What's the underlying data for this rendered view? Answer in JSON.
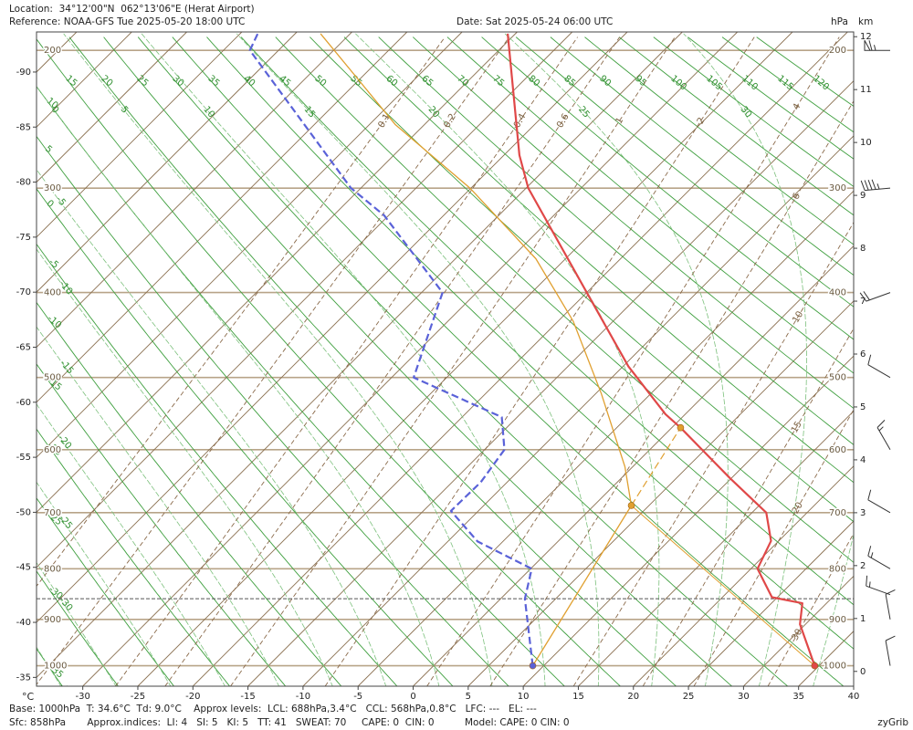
{
  "header": {
    "location": "Location:  34°12'00\"N  062°13'06\"E (Herat Airport)",
    "reference": "Reference: NOAA-GFS Tue 2025-05-20 18:00 UTC",
    "date": "Date: Sat 2025-05-24 06:00 UTC",
    "hpa_unit": "hPa",
    "km_unit": "km"
  },
  "chart_data": {
    "type": "skewt",
    "xlabel": "°C",
    "xlim": [
      -34.2,
      40
    ],
    "xticks": [
      -30,
      -25,
      -20,
      -15,
      -10,
      -5,
      0,
      5,
      10,
      15,
      20,
      25,
      30,
      35,
      40
    ],
    "isotherm_labels": [
      -90,
      -85,
      -80,
      -75,
      -70,
      -65,
      -60,
      -55,
      -50,
      -45,
      -40,
      -35
    ],
    "plim": [
      1047,
      189
    ],
    "pticks": [
      200,
      300,
      400,
      500,
      600,
      700,
      800,
      900,
      1000
    ],
    "kmlim": [
      -0.28,
      12.09
    ],
    "kmticks": [
      0,
      1,
      2,
      3,
      4,
      5,
      6,
      7,
      8,
      9,
      10,
      11,
      12
    ],
    "dry_adiabats": [
      -35,
      -30,
      -25,
      -20,
      -15,
      -10,
      -5,
      0,
      5,
      10,
      15,
      20,
      25,
      30,
      35,
      40,
      45,
      50,
      55,
      60,
      65,
      70,
      75,
      80,
      85,
      90,
      95,
      100,
      105,
      110,
      115,
      120
    ],
    "moist_adiabats": [
      -35,
      -30,
      -25,
      -20,
      -15,
      -10,
      -5,
      0,
      5,
      10,
      15,
      20,
      25,
      30,
      35
    ],
    "mixing_ratios": [
      0.1,
      0.2,
      0.4,
      0.6,
      1,
      2,
      4,
      6,
      10,
      15,
      20,
      30
    ],
    "sfc_pressure": 858,
    "series": [
      {
        "color": "#e04848",
        "width": 2.2,
        "dash": false,
        "markers": [
          0
        ],
        "pressure": [
          1000,
          910,
          867,
          855,
          800,
          749,
          700,
          644,
          568,
          549,
          486,
          400,
          300,
          273,
          190
        ],
        "values": [
          34.6,
          29.5,
          27.8,
          24.5,
          20.6,
          19.3,
          16.3,
          9.9,
          0.8,
          -1.8,
          -9.5,
          -20.0,
          -34.8,
          -38.6,
          -50.7
        ]
      },
      {
        "color": "#5a62d8",
        "width": 2.2,
        "dash": true,
        "markers": [
          0
        ],
        "pressure": [
          1000,
          858,
          800,
          750,
          697,
          650,
          600,
          553,
          500,
          400,
          324,
          300,
          200,
          190
        ],
        "values": [
          9.0,
          2.2,
          0.1,
          -7.3,
          -12.5,
          -12.4,
          -13.2,
          -16.4,
          -28.0,
          -33.1,
          -45.4,
          -50.9,
          -72.6,
          -73.4
        ]
      },
      {
        "color": "#e0a030",
        "width": 1.3,
        "dash": false,
        "markers": [],
        "pressure": [
          1000,
          688,
          626,
          521,
          432,
          365,
          300,
          250,
          190
        ],
        "values": [
          9.0,
          3.4,
          -0.7,
          -9.5,
          -18.6,
          -27.7,
          -40.1,
          -52.6,
          -67.7
        ]
      },
      {
        "color": "#e0a030",
        "width": 1,
        "dash": false,
        "markers": [],
        "pressure": [
          1000,
          688
        ],
        "values": [
          34.6,
          3.4
        ]
      },
      {
        "color": "#e0a030",
        "width": 1.2,
        "dash": true,
        "markers": [
          0,
          1
        ],
        "pressure": [
          688,
          568
        ],
        "values": [
          3.4,
          0.8
        ]
      }
    ],
    "winds": {
      "pressure": [
        200,
        300,
        400,
        500,
        600,
        700,
        800,
        850,
        900,
        1000
      ],
      "direction": [
        270,
        265,
        250,
        300,
        330,
        300,
        300,
        290,
        350,
        350
      ],
      "speed": [
        65,
        45,
        20,
        10,
        15,
        10,
        15,
        15,
        10,
        10
      ]
    }
  },
  "footer": {
    "line1": "Base: 1000hPa  T: 34.6°C  Td: 9.0°C    Approx levels:  LCL: 688hPa,3.4°C   CCL: 568hPa,0.8°C   LFC: ---   EL: ---",
    "line2": "Sfc: 858hPa       Approx.indices:  LI: 4   SI: 5   KI: 5   TT: 41   SWEAT: 70     CAPE: 0  CIN: 0          Model: CAPE: 0 CIN: 0",
    "brand": "zyGrib"
  }
}
